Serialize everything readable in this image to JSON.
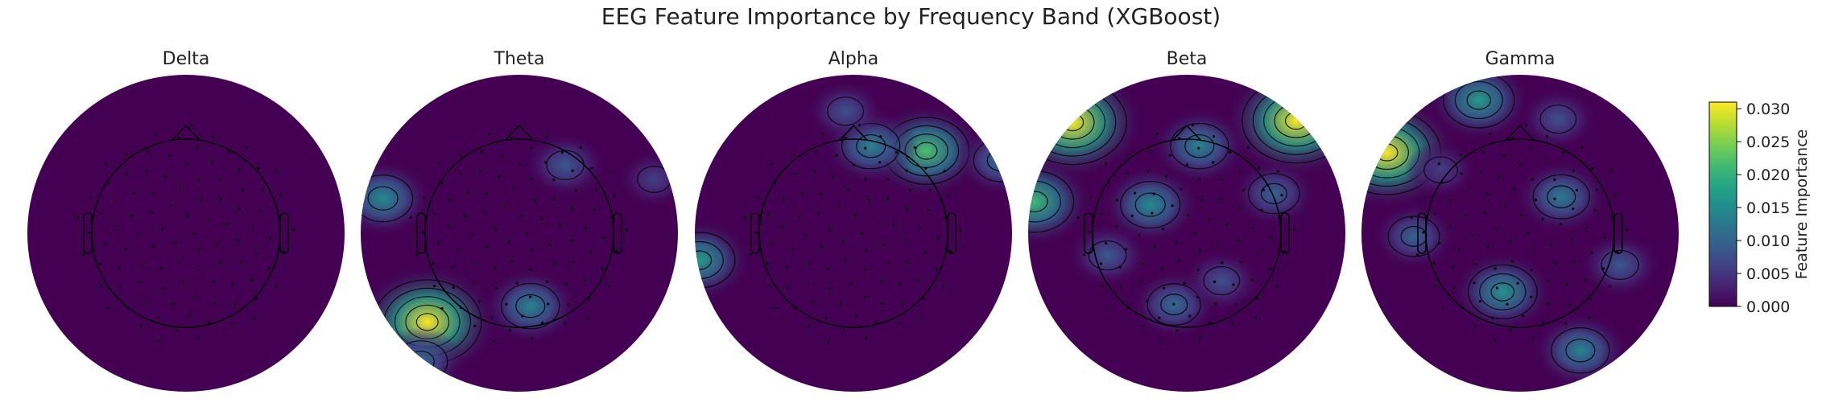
{
  "chart_data": {
    "type": "heatmap",
    "title": "EEG Feature Importance by Frequency Band (XGBoost)",
    "colormap": "viridis",
    "colorbar": {
      "label": "Feature Importance",
      "range": [
        0.0,
        0.031
      ],
      "ticks": [
        0.0,
        0.005,
        0.01,
        0.015,
        0.02,
        0.025,
        0.03
      ],
      "tick_labels": [
        "0.000",
        "0.005",
        "0.010",
        "0.015",
        "0.020",
        "0.025",
        "0.030"
      ]
    },
    "bands": [
      {
        "name": "Delta",
        "max_importance": 0.0,
        "hotspots": []
      },
      {
        "name": "Theta",
        "max_importance": 0.031,
        "hotspots": [
          {
            "region": "left-temporal",
            "x": -0.86,
            "y": 0.22,
            "value": 0.015
          },
          {
            "region": "left-posterior-temporal",
            "x": -0.58,
            "y": -0.56,
            "value": 0.031
          },
          {
            "region": "posterior-midline",
            "x": 0.07,
            "y": -0.46,
            "value": 0.014
          },
          {
            "region": "left-occipital",
            "x": -0.62,
            "y": -0.81,
            "value": 0.011
          },
          {
            "region": "right-frontal",
            "x": 0.29,
            "y": 0.43,
            "value": 0.009
          },
          {
            "region": "right-temporal",
            "x": 0.85,
            "y": 0.34,
            "value": 0.006
          }
        ]
      },
      {
        "name": "Alpha",
        "max_importance": 0.022,
        "hotspots": [
          {
            "region": "right-frontal",
            "x": 0.46,
            "y": 0.52,
            "value": 0.022
          },
          {
            "region": "frontal-midline",
            "x": 0.11,
            "y": 0.55,
            "value": 0.014
          },
          {
            "region": "left-temporal",
            "x": -0.97,
            "y": -0.17,
            "value": 0.017
          },
          {
            "region": "right-temporal",
            "x": 0.93,
            "y": 0.46,
            "value": 0.012
          },
          {
            "region": "anterior",
            "x": -0.05,
            "y": 0.77,
            "value": 0.008
          }
        ]
      },
      {
        "name": "Beta",
        "max_importance": 0.031,
        "hotspots": [
          {
            "region": "left-frontal",
            "x": -0.72,
            "y": 0.7,
            "value": 0.031
          },
          {
            "region": "right-frontal",
            "x": 0.69,
            "y": 0.71,
            "value": 0.031
          },
          {
            "region": "left-temporal",
            "x": -0.96,
            "y": 0.2,
            "value": 0.021
          },
          {
            "region": "central",
            "x": -0.23,
            "y": 0.18,
            "value": 0.015
          },
          {
            "region": "frontal-midline",
            "x": 0.08,
            "y": 0.55,
            "value": 0.014
          },
          {
            "region": "right-temporal",
            "x": 0.55,
            "y": 0.25,
            "value": 0.01
          },
          {
            "region": "left-central",
            "x": -0.5,
            "y": -0.14,
            "value": 0.009
          },
          {
            "region": "parietal",
            "x": -0.08,
            "y": -0.45,
            "value": 0.011
          },
          {
            "region": "posterior",
            "x": 0.22,
            "y": -0.3,
            "value": 0.008
          }
        ]
      },
      {
        "name": "Gamma",
        "max_importance": 0.031,
        "hotspots": [
          {
            "region": "left-frontal",
            "x": -0.84,
            "y": 0.51,
            "value": 0.031
          },
          {
            "region": "left-anterior",
            "x": -0.26,
            "y": 0.84,
            "value": 0.017
          },
          {
            "region": "right-anterior",
            "x": 0.24,
            "y": 0.72,
            "value": 0.008
          },
          {
            "region": "right-central",
            "x": 0.26,
            "y": 0.23,
            "value": 0.013
          },
          {
            "region": "posterior",
            "x": -0.11,
            "y": -0.37,
            "value": 0.016
          },
          {
            "region": "right-occipital",
            "x": 0.38,
            "y": -0.74,
            "value": 0.014
          },
          {
            "region": "left-temporal",
            "x": -0.67,
            "y": -0.02,
            "value": 0.01
          },
          {
            "region": "right-temporal",
            "x": 0.63,
            "y": -0.2,
            "value": 0.009
          },
          {
            "region": "left-frontal-2",
            "x": -0.5,
            "y": 0.4,
            "value": 0.006
          }
        ]
      }
    ]
  }
}
